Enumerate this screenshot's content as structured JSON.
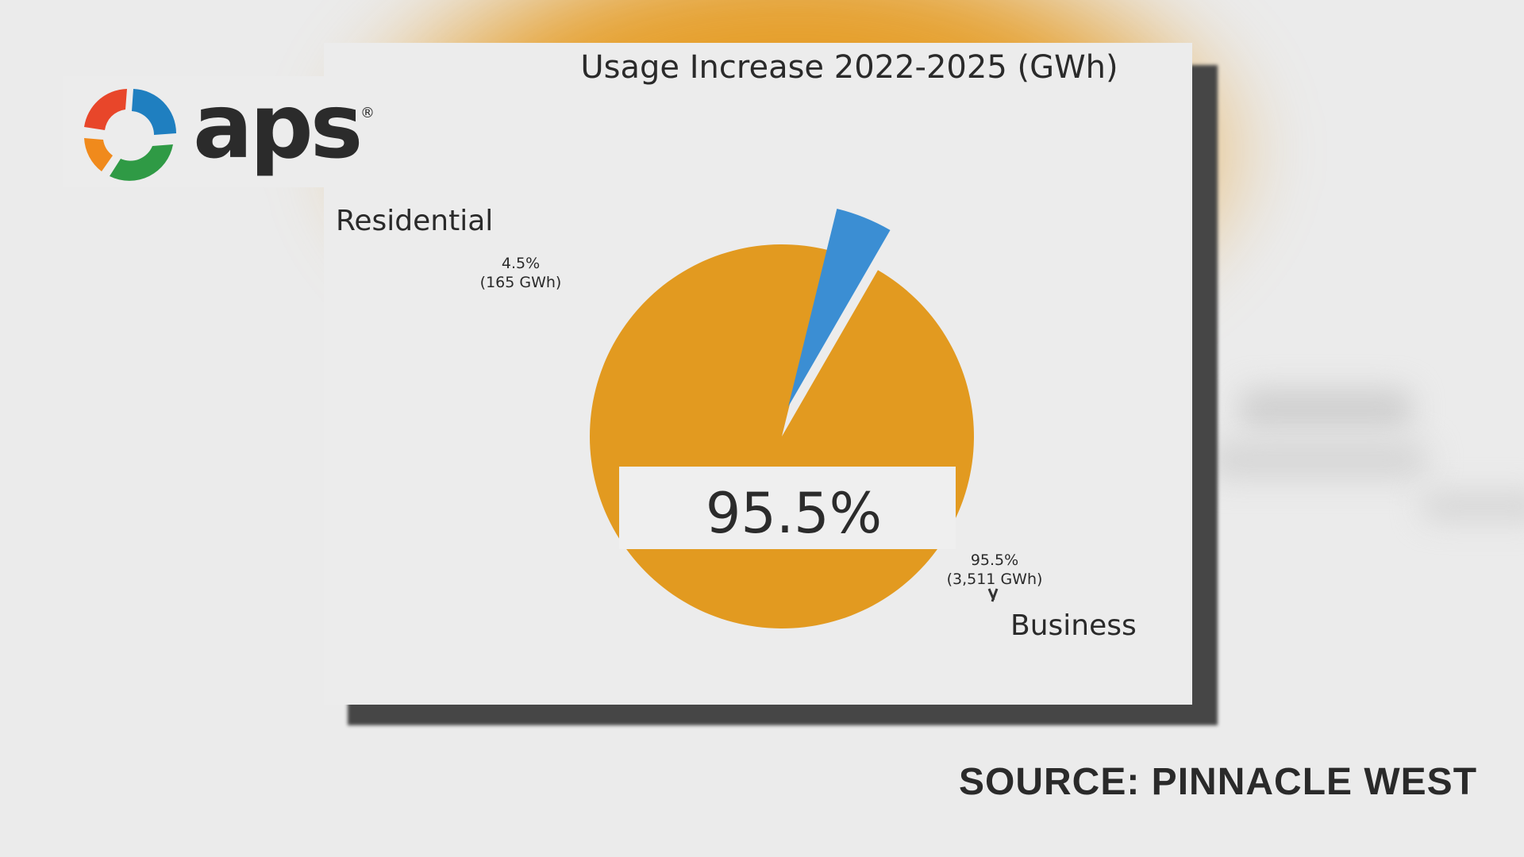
{
  "logo": {
    "text": "aps",
    "registered": "®"
  },
  "source_caption": "SOURCE: PINNACLE WEST",
  "chart_data": {
    "type": "pie",
    "title": "Usage Increase 2022-2025 (GWh)",
    "highlight": "95.5%",
    "slices": [
      {
        "name": "Residential",
        "percent": 4.5,
        "value": 165,
        "label_pct": "4.5%",
        "label_value": "(165 GWh)",
        "color": "#3b8ed3",
        "exploded": true
      },
      {
        "name": "Business",
        "percent": 95.5,
        "value": 3511,
        "label_pct": "95.5%",
        "label_value": "(3,511 GWh)",
        "color": "#e29a20",
        "exploded": false
      }
    ]
  },
  "colors": {
    "business": "#e29a20",
    "residential": "#3b8ed3",
    "background": "#ebebeb"
  }
}
